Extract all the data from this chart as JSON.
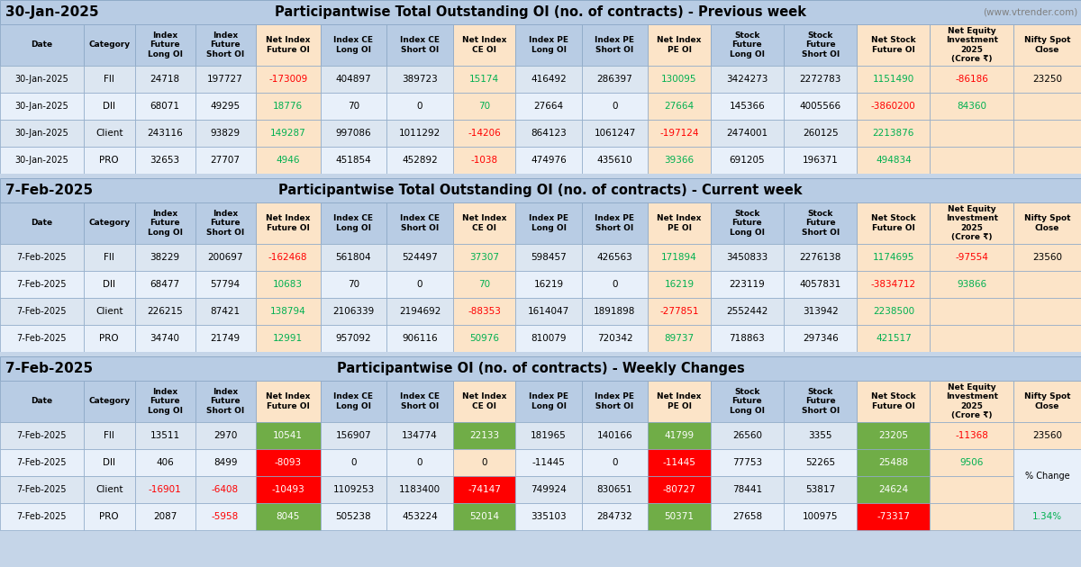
{
  "section1_title_left": "30-Jan-2025",
  "section1_title_main": "Participantwise Total Outstanding OI (no. of contracts) - Previous week",
  "section1_title_note": "(www.vtrender.com)",
  "section2_title_left": "7-Feb-2025",
  "section2_title_main": "Participantwise Total Outstanding OI (no. of contracts) - Current week",
  "section3_title_left": "7-Feb-2025",
  "section3_title_main": "Participantwise OI (no. of contracts) - Weekly Changes",
  "col_headers_line1": [
    "Date",
    "Category",
    "Index",
    "Index",
    "Net Index",
    "Index CE",
    "Index CE",
    "Net Index",
    "Index PE",
    "Index PE",
    "Net Index",
    "Stock",
    "Stock",
    "Net Stock",
    "Net Equity",
    "Nifty Spot"
  ],
  "col_headers_line2": [
    "",
    "",
    "Future",
    "Future",
    "Future OI",
    "Long OI",
    "Short OI",
    "CE OI",
    "Long OI",
    "Short OI",
    "PE OI",
    "Future",
    "Future",
    "Future OI",
    "Investment",
    "Close"
  ],
  "col_headers_line3": [
    "",
    "",
    "Long OI",
    "Short OI",
    "",
    "",
    "",
    "",
    "",
    "",
    "",
    "Long OI",
    "Short OI",
    "",
    "2025",
    ""
  ],
  "col_headers_line4": [
    "",
    "",
    "",
    "",
    "",
    "",
    "",
    "",
    "",
    "",
    "",
    "",
    "",
    "",
    "(Crore ₹)",
    ""
  ],
  "section1_rows": [
    [
      "30-Jan-2025",
      "FII",
      "24718",
      "197727",
      "-173009",
      "404897",
      "389723",
      "15174",
      "416492",
      "286397",
      "130095",
      "3424273",
      "2272783",
      "1151490",
      "-86186",
      "23250"
    ],
    [
      "30-Jan-2025",
      "DII",
      "68071",
      "49295",
      "18776",
      "70",
      "0",
      "70",
      "27664",
      "0",
      "27664",
      "145366",
      "4005566",
      "-3860200",
      "84360",
      ""
    ],
    [
      "30-Jan-2025",
      "Client",
      "243116",
      "93829",
      "149287",
      "997086",
      "1011292",
      "-14206",
      "864123",
      "1061247",
      "-197124",
      "2474001",
      "260125",
      "2213876",
      "",
      ""
    ],
    [
      "30-Jan-2025",
      "PRO",
      "32653",
      "27707",
      "4946",
      "451854",
      "452892",
      "-1038",
      "474976",
      "435610",
      "39366",
      "691205",
      "196371",
      "494834",
      "",
      ""
    ]
  ],
  "section2_rows": [
    [
      "7-Feb-2025",
      "FII",
      "38229",
      "200697",
      "-162468",
      "561804",
      "524497",
      "37307",
      "598457",
      "426563",
      "171894",
      "3450833",
      "2276138",
      "1174695",
      "-97554",
      "23560"
    ],
    [
      "7-Feb-2025",
      "DII",
      "68477",
      "57794",
      "10683",
      "70",
      "0",
      "70",
      "16219",
      "0",
      "16219",
      "223119",
      "4057831",
      "-3834712",
      "93866",
      ""
    ],
    [
      "7-Feb-2025",
      "Client",
      "226215",
      "87421",
      "138794",
      "2106339",
      "2194692",
      "-88353",
      "1614047",
      "1891898",
      "-277851",
      "2552442",
      "313942",
      "2238500",
      "",
      ""
    ],
    [
      "7-Feb-2025",
      "PRO",
      "34740",
      "21749",
      "12991",
      "957092",
      "906116",
      "50976",
      "810079",
      "720342",
      "89737",
      "718863",
      "297346",
      "421517",
      "",
      ""
    ]
  ],
  "section3_rows": [
    [
      "7-Feb-2025",
      "FII",
      "13511",
      "2970",
      "10541",
      "156907",
      "134774",
      "22133",
      "181965",
      "140166",
      "41799",
      "26560",
      "3355",
      "23205",
      "-11368",
      "23560"
    ],
    [
      "7-Feb-2025",
      "DII",
      "406",
      "8499",
      "-8093",
      "0",
      "0",
      "0",
      "-11445",
      "0",
      "-11445",
      "77753",
      "52265",
      "25488",
      "9506",
      ""
    ],
    [
      "7-Feb-2025",
      "Client",
      "-16901",
      "-6408",
      "-10493",
      "1109253",
      "1183400",
      "-74147",
      "749924",
      "830651",
      "-80727",
      "78441",
      "53817",
      "24624",
      "",
      ""
    ],
    [
      "7-Feb-2025",
      "PRO",
      "2087",
      "-5958",
      "8045",
      "505238",
      "453224",
      "52014",
      "335103",
      "284732",
      "50371",
      "27658",
      "100975",
      "-73317",
      "",
      ""
    ]
  ],
  "pct_change": "1.34%",
  "bg_main": "#c5d5e8",
  "bg_title": "#b8cce4",
  "bg_header": "#b8cce4",
  "bg_row_odd": "#dce6f1",
  "bg_row_even": "#e8f0fa",
  "bg_net_col": "#fce4c8",
  "bg_net_equity_col": "#fce4c8",
  "bg_nifty_col": "#fce4c8",
  "bg_green_cell": "#70ad47",
  "bg_red_cell": "#ff0000",
  "color_green": "#00b050",
  "color_red": "#ff0000",
  "color_black": "#000000",
  "color_white": "#ffffff",
  "color_note": "#808080"
}
